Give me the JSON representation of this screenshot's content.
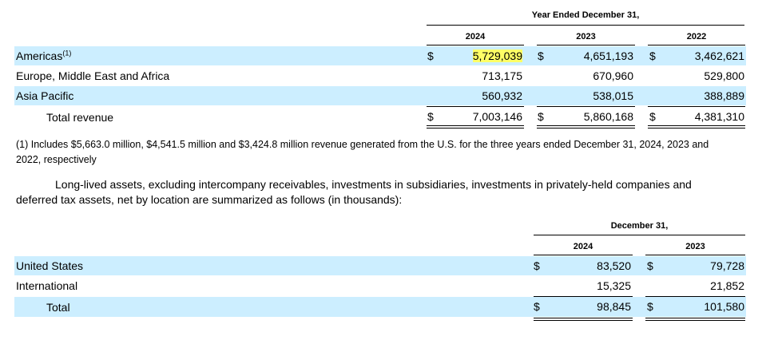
{
  "revenue_table": {
    "header_group": "Year Ended December 31,",
    "years": [
      "2024",
      "2023",
      "2022"
    ],
    "currency_symbol": "$",
    "rows": [
      {
        "label": "Americas",
        "footnote_ref": "(1)",
        "values": [
          "5,729,039",
          "4,651,193",
          "3,462,621"
        ]
      },
      {
        "label": "Europe, Middle East and Africa",
        "values": [
          "713,175",
          "670,960",
          "529,800"
        ]
      },
      {
        "label": "Asia Pacific",
        "values": [
          "560,932",
          "538,015",
          "388,889"
        ]
      }
    ],
    "total": {
      "label": "Total revenue",
      "values": [
        "7,003,146",
        "5,860,168",
        "4,381,310"
      ]
    },
    "highlight_color": "#ffff66",
    "band_color": "#cceeff"
  },
  "footnote": {
    "line1": "(1) Includes $5,663.0 million, $4,541.5 million and $3,424.8 million revenue generated from the U.S. for the three years ended December 31, 2024, 2023 and",
    "line2": "2022, respectively"
  },
  "paragraph": {
    "line1": "Long-lived assets, excluding intercompany receivables, investments in subsidiaries, investments in privately-held companies and",
    "line2": "deferred tax assets, net by location are summarized as follows (in thousands):"
  },
  "assets_table": {
    "header_group": "December 31,",
    "years": [
      "2024",
      "2023"
    ],
    "currency_symbol": "$",
    "rows": [
      {
        "label": "United States",
        "values": [
          "83,520",
          "79,728"
        ]
      },
      {
        "label": "International",
        "values": [
          "15,325",
          "21,852"
        ]
      }
    ],
    "total": {
      "label": "Total",
      "values": [
        "98,845",
        "101,580"
      ]
    }
  }
}
